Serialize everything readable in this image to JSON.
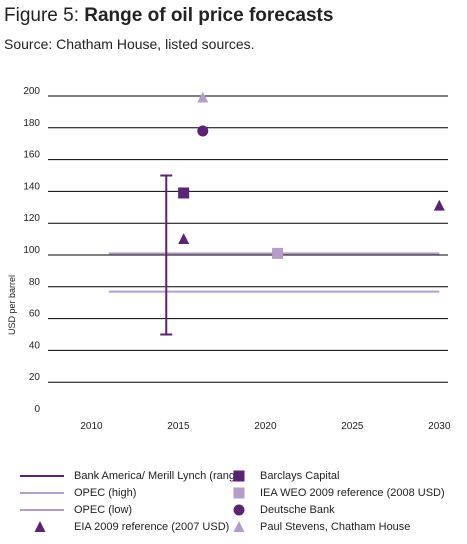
{
  "figure": {
    "title_prefix": "Figure 5: ",
    "title_main": "Range of oil price forecasts",
    "source": "Source: Chatham House, listed sources."
  },
  "chart_data": {
    "type": "scatter",
    "ylabel": "USD per barrel",
    "xlabel": "",
    "xlim": [
      2007.5,
      2030.5
    ],
    "ylim": [
      0,
      200
    ],
    "x_ticks": [
      2010,
      2015,
      2020,
      2025,
      2030
    ],
    "y_ticks": [
      0,
      20,
      40,
      60,
      80,
      100,
      120,
      140,
      160,
      180,
      200
    ],
    "grid": true,
    "legend_position": "bottom",
    "colors": {
      "dark": "#5a2373",
      "light": "#b59cc9",
      "grid": "#000000"
    },
    "series": [
      {
        "name": "Bank America/ Merill Lynch (range)",
        "marker": "range",
        "color": "#5a2373",
        "points": [
          {
            "x": 2014.3,
            "low": 50,
            "high": 150
          }
        ]
      },
      {
        "name": "OPEC (high)",
        "marker": "hline",
        "color": "#b59cc9",
        "points": [
          {
            "x_start": 2011,
            "x_end": 2030,
            "y": 101
          }
        ]
      },
      {
        "name": "OPEC (low)",
        "marker": "hline",
        "color": "#b59cc9",
        "points": [
          {
            "x_start": 2011,
            "x_end": 2030,
            "y": 77
          }
        ]
      },
      {
        "name": "EIA 2009 reference (2007 USD)",
        "marker": "triangle",
        "color": "#5a2373",
        "points": [
          {
            "x": 2015.3,
            "y": 110
          },
          {
            "x": 2030,
            "y": 131
          }
        ]
      },
      {
        "name": "Barclays Capital",
        "marker": "square",
        "color": "#5a2373",
        "points": [
          {
            "x": 2015.3,
            "y": 139
          }
        ]
      },
      {
        "name": "IEA WEO 2009 reference (2008 USD)",
        "marker": "square",
        "color": "#b59cc9",
        "points": [
          {
            "x": 2020.7,
            "y": 101
          }
        ]
      },
      {
        "name": "Deutsche Bank",
        "marker": "circle",
        "color": "#5a2373",
        "points": [
          {
            "x": 2016.4,
            "y": 178
          }
        ]
      },
      {
        "name": "Paul Stevens, Chatham House",
        "marker": "triangle",
        "color": "#b59cc9",
        "points": [
          {
            "x": 2016.4,
            "y": 199
          }
        ]
      }
    ]
  },
  "legend": [
    {
      "label": "Bank America/ Merill Lynch (range)",
      "marker": "range",
      "color": "#5a2373"
    },
    {
      "label": "Barclays Capital",
      "marker": "square",
      "color": "#5a2373"
    },
    {
      "label": "OPEC (high)",
      "marker": "hline",
      "color": "#b59cc9"
    },
    {
      "label": "IEA WEO 2009 reference (2008 USD)",
      "marker": "square",
      "color": "#b59cc9"
    },
    {
      "label": "OPEC (low)",
      "marker": "hline",
      "color": "#b59cc9"
    },
    {
      "label": "Deutsche Bank",
      "marker": "circle",
      "color": "#5a2373"
    },
    {
      "label": "EIA 2009 reference (2007 USD)",
      "marker": "triangle",
      "color": "#5a2373"
    },
    {
      "label": "Paul Stevens, Chatham House",
      "marker": "triangle",
      "color": "#b59cc9"
    }
  ]
}
